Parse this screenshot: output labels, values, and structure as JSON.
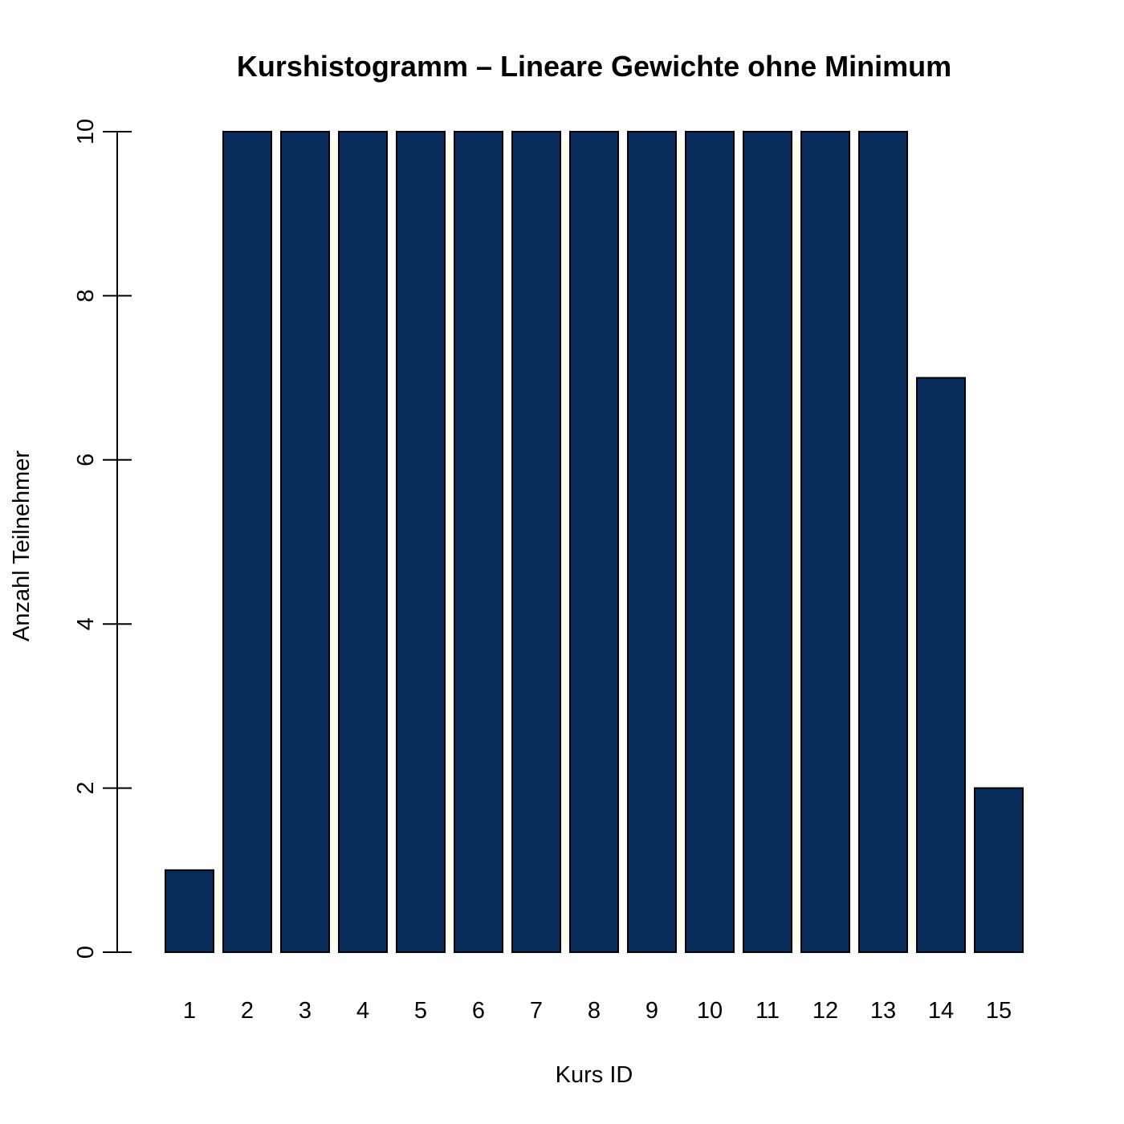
{
  "chart_data": {
    "type": "bar",
    "title": "Kurshistogramm – Lineare Gewichte ohne Minimum",
    "xlabel": "Kurs ID",
    "ylabel": "Anzahl Teilnehmer",
    "categories": [
      "1",
      "2",
      "3",
      "4",
      "5",
      "6",
      "7",
      "8",
      "9",
      "10",
      "11",
      "12",
      "13",
      "14",
      "15"
    ],
    "values": [
      1,
      10,
      10,
      10,
      10,
      10,
      10,
      10,
      10,
      10,
      10,
      10,
      10,
      7,
      2
    ],
    "ylim": [
      0,
      10
    ],
    "yticks": [
      "0",
      "2",
      "4",
      "6",
      "8",
      "10"
    ],
    "grid": false,
    "bar_color": "#072b5a"
  }
}
